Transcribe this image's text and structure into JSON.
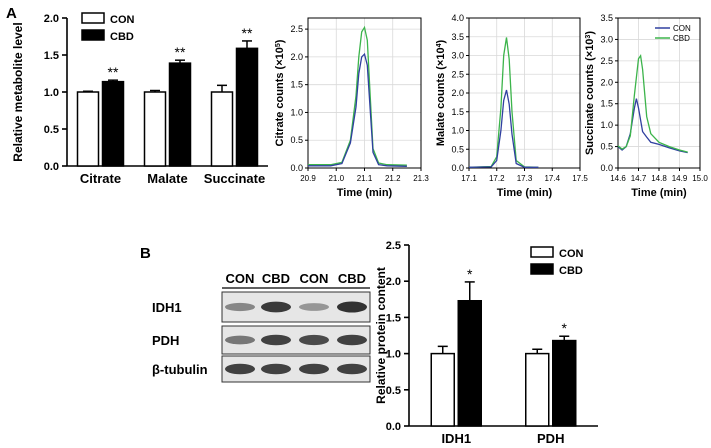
{
  "panels": {
    "A": {
      "label": "A"
    },
    "B": {
      "label": "B"
    }
  },
  "chart_data": [
    {
      "id": "metabolite-bar",
      "type": "bar",
      "ylabel": "Relative metabolite level",
      "ylim": [
        0,
        2.0
      ],
      "yticks": [
        "0.0",
        "0.5",
        "1.0",
        "1.5",
        "2.0"
      ],
      "categories": [
        "Citrate",
        "Malate",
        "Succinate"
      ],
      "legend": {
        "placement": "top-left"
      },
      "series": [
        {
          "name": "CON",
          "values": [
            1.0,
            1.0,
            1.0
          ],
          "errors": [
            0.01,
            0.02,
            0.09
          ],
          "sig": [
            "",
            "",
            ""
          ],
          "fill": "#ffffff"
        },
        {
          "name": "CBD",
          "values": [
            1.14,
            1.39,
            1.59
          ],
          "errors": [
            0.02,
            0.04,
            0.1
          ],
          "sig": [
            "**",
            "**",
            "**"
          ],
          "fill": "#000000"
        }
      ]
    },
    {
      "id": "citrate-chrom",
      "type": "line",
      "ylabel": "Citrate counts (×10",
      "ylabel_exp": "5",
      "xlabel": "Time (min)",
      "xlim": [
        20.9,
        21.3
      ],
      "xticks": [
        "20.9",
        "21.0",
        "21.1",
        "21.2",
        "21.3"
      ],
      "ylim": [
        0,
        2.7
      ],
      "yticks": [
        "0.0",
        "0.5",
        "1.0",
        "1.5",
        "2.0",
        "2.5"
      ],
      "series": [
        {
          "color": "#3cb44b",
          "x": [
            20.9,
            20.98,
            21.02,
            21.05,
            21.07,
            21.08,
            21.09,
            21.1,
            21.11,
            21.12,
            21.13,
            21.15,
            21.18,
            21.25
          ],
          "y": [
            0.06,
            0.06,
            0.1,
            0.5,
            1.3,
            2.0,
            2.45,
            2.53,
            2.3,
            1.3,
            0.35,
            0.09,
            0.06,
            0.05
          ]
        },
        {
          "color": "#3040a0",
          "x": [
            20.9,
            20.98,
            21.02,
            21.05,
            21.07,
            21.08,
            21.09,
            21.1,
            21.11,
            21.12,
            21.13,
            21.15,
            21.18,
            21.25
          ],
          "y": [
            0.04,
            0.04,
            0.08,
            0.45,
            1.1,
            1.7,
            2.0,
            2.05,
            1.85,
            1.05,
            0.28,
            0.06,
            0.04,
            0.03
          ]
        }
      ]
    },
    {
      "id": "malate-chrom",
      "type": "line",
      "ylabel": "Malate counts (×10",
      "ylabel_exp": "4",
      "xlabel": "Time (min)",
      "xlim": [
        17.1,
        17.5
      ],
      "xticks": [
        "17.1",
        "17.2",
        "17.3",
        "17.4",
        "17.5"
      ],
      "ylim": [
        0,
        4.0
      ],
      "yticks": [
        "0.0",
        "0.5",
        "1.0",
        "1.5",
        "2.0",
        "2.5",
        "3.0",
        "3.5",
        "4.0"
      ],
      "series": [
        {
          "color": "#3cb44b",
          "x": [
            17.1,
            17.18,
            17.2,
            17.215,
            17.225,
            17.235,
            17.245,
            17.255,
            17.27,
            17.3,
            17.35
          ],
          "y": [
            0.02,
            0.04,
            0.3,
            1.6,
            3.0,
            3.48,
            2.9,
            1.5,
            0.2,
            0.03,
            0.02
          ]
        },
        {
          "color": "#3040a0",
          "x": [
            17.1,
            17.18,
            17.2,
            17.215,
            17.225,
            17.235,
            17.245,
            17.255,
            17.27,
            17.3,
            17.35
          ],
          "y": [
            0.02,
            0.03,
            0.2,
            1.0,
            1.8,
            2.08,
            1.7,
            0.9,
            0.12,
            0.02,
            0.02
          ]
        }
      ]
    },
    {
      "id": "succinate-chrom",
      "type": "line",
      "ylabel": "Succinate counts (×10",
      "ylabel_exp": "3",
      "xlabel": "Time (min)",
      "xlim": [
        14.6,
        15.0
      ],
      "xticks": [
        "14.6",
        "14.7",
        "14.8",
        "14.9",
        "15.0"
      ],
      "ylim": [
        0,
        3.5
      ],
      "yticks": [
        "0.0",
        "0.5",
        "1.0",
        "1.5",
        "2.0",
        "2.5",
        "3.0",
        "3.5"
      ],
      "legend": {
        "placement": "top-right"
      },
      "series": [
        {
          "name": "CON",
          "color": "#3040a0",
          "x": [
            14.6,
            14.62,
            14.64,
            14.66,
            14.68,
            14.69,
            14.7,
            14.72,
            14.74,
            14.76,
            14.8,
            14.85,
            14.9,
            14.94
          ],
          "y": [
            0.5,
            0.42,
            0.5,
            0.8,
            1.4,
            1.62,
            1.4,
            0.85,
            0.72,
            0.6,
            0.55,
            0.47,
            0.4,
            0.36
          ]
        },
        {
          "name": "CBD",
          "color": "#3cb44b",
          "x": [
            14.6,
            14.62,
            14.64,
            14.66,
            14.68,
            14.7,
            14.71,
            14.72,
            14.74,
            14.76,
            14.8,
            14.85,
            14.9,
            14.94
          ],
          "y": [
            0.52,
            0.44,
            0.5,
            0.75,
            1.7,
            2.55,
            2.62,
            2.3,
            1.2,
            0.8,
            0.6,
            0.5,
            0.42,
            0.37
          ]
        }
      ]
    },
    {
      "id": "protein-bar",
      "type": "bar",
      "ylabel": "Relative protein content",
      "ylim": [
        0,
        2.5
      ],
      "yticks": [
        "0.0",
        "0.5",
        "1.0",
        "1.5",
        "2.0",
        "2.5"
      ],
      "categories": [
        "IDH1",
        "PDH"
      ],
      "legend": {
        "placement": "top-right"
      },
      "series": [
        {
          "name": "CON",
          "values": [
            1.0,
            1.0
          ],
          "errors": [
            0.1,
            0.06
          ],
          "sig": [
            "",
            ""
          ],
          "fill": "#ffffff"
        },
        {
          "name": "CBD",
          "values": [
            1.73,
            1.18
          ],
          "errors": [
            0.26,
            0.06
          ],
          "sig": [
            "*",
            "*"
          ],
          "fill": "#000000"
        }
      ]
    }
  ],
  "western_blot": {
    "lane_labels": [
      "CON",
      "CBD",
      "CON",
      "CBD"
    ],
    "rows": [
      {
        "name": "IDH1",
        "intensity": [
          0.45,
          0.95,
          0.35,
          1.0
        ]
      },
      {
        "name": "PDH",
        "intensity": [
          0.55,
          0.9,
          0.85,
          0.9
        ]
      },
      {
        "name": "β-tubulin",
        "intensity": [
          0.9,
          0.9,
          0.9,
          0.9
        ]
      }
    ]
  }
}
